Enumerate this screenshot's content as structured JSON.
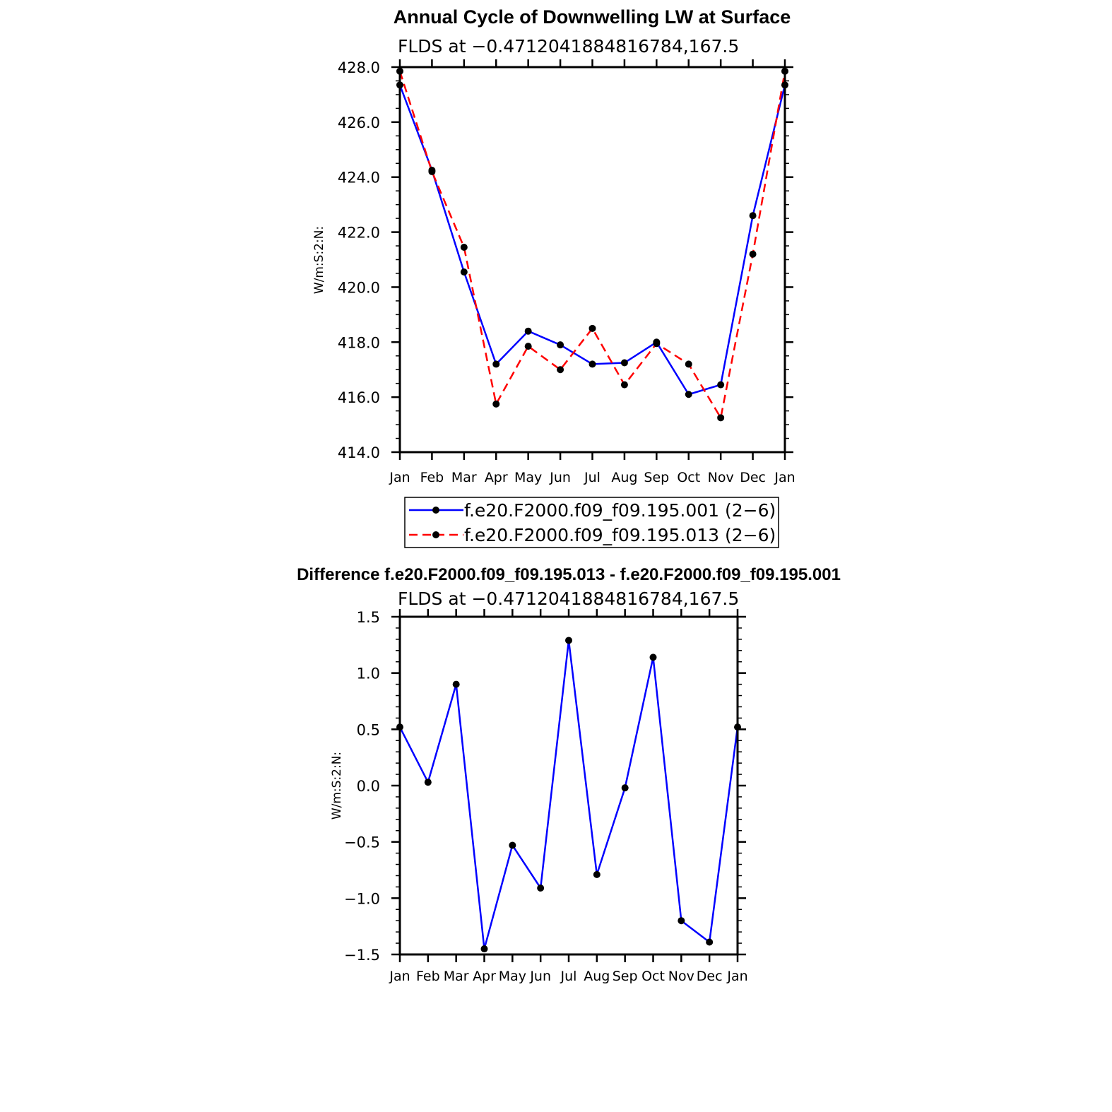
{
  "chart_data": [
    {
      "type": "line",
      "title": "Annual Cycle of Downwelling LW at Surface",
      "subtitle": "FLDS at −0.4712041884816784,167.5",
      "xlabel": "",
      "ylabel": "W/m:S:2:N:",
      "categories": [
        "Jan",
        "Feb",
        "Mar",
        "Apr",
        "May",
        "Jun",
        "Jul",
        "Aug",
        "Sep",
        "Oct",
        "Nov",
        "Dec",
        "Jan"
      ],
      "ylim": [
        414.0,
        428.0
      ],
      "yticks": [
        414.0,
        416.0,
        418.0,
        420.0,
        422.0,
        424.0,
        426.0,
        428.0
      ],
      "ytick_labels": [
        "414.0",
        "416.0",
        "418.0",
        "420.0",
        "422.0",
        "424.0",
        "426.0",
        "428.0"
      ],
      "legend_position": "bottom",
      "series": [
        {
          "name": "f.e20.F2000.f09_f09.195.001 (2−6)",
          "color": "#0000ff",
          "dash": "solid",
          "values": [
            427.35,
            424.25,
            420.55,
            417.2,
            418.4,
            417.9,
            417.2,
            417.25,
            418.0,
            416.1,
            416.45,
            422.6,
            427.35
          ]
        },
        {
          "name": "f.e20.F2000.f09_f09.195.013 (2−6)",
          "color": "#ff0000",
          "dash": "dashed",
          "values": [
            427.85,
            424.2,
            421.45,
            415.75,
            417.85,
            417.0,
            418.5,
            416.45,
            417.95,
            417.2,
            415.25,
            421.2,
            427.85
          ]
        }
      ]
    },
    {
      "type": "line",
      "title": "Difference f.e20.F2000.f09_f09.195.013 - f.e20.F2000.f09_f09.195.001",
      "subtitle": "FLDS at −0.4712041884816784,167.5",
      "xlabel": "",
      "ylabel": "W/m:S:2:N:",
      "categories": [
        "Jan",
        "Feb",
        "Mar",
        "Apr",
        "May",
        "Jun",
        "Jul",
        "Aug",
        "Sep",
        "Oct",
        "Nov",
        "Dec",
        "Jan"
      ],
      "ylim": [
        -1.5,
        1.5
      ],
      "yticks": [
        -1.5,
        -1.0,
        -0.5,
        0.0,
        0.5,
        1.0,
        1.5
      ],
      "ytick_labels": [
        "−1.5",
        "−1.0",
        "−0.5",
        "0.0",
        "0.5",
        "1.0",
        "1.5"
      ],
      "series": [
        {
          "color": "#0000ff",
          "dash": "solid",
          "values": [
            0.52,
            0.03,
            0.9,
            -1.45,
            -0.53,
            -0.91,
            1.29,
            -0.79,
            -0.02,
            1.14,
            -1.2,
            -1.39,
            0.52
          ]
        }
      ]
    }
  ]
}
